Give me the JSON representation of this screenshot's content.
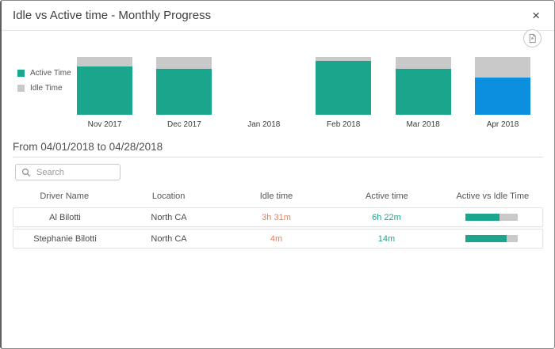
{
  "modal": {
    "title": "Idle vs Active time - Monthly Progress",
    "close_icon": "×"
  },
  "icons": {
    "close": "x-glyph",
    "export": "document-export-icon",
    "search": "magnifier"
  },
  "chart_data": {
    "type": "bar",
    "subtype": "stacked-100-percent",
    "title": "Idle vs Active time - Monthly Progress",
    "categories": [
      "Nov 2017",
      "Dec 2017",
      "Jan 2018",
      "Feb 2018",
      "Mar 2018",
      "Apr 2018"
    ],
    "series": [
      {
        "name": "Active Time",
        "color": "#1aa68c",
        "values_pct": [
          84,
          80,
          null,
          93,
          80,
          64
        ]
      },
      {
        "name": "Idle Time",
        "color": "#c9c9c9",
        "values_pct": [
          16,
          20,
          null,
          7,
          20,
          36
        ]
      }
    ],
    "highlight": {
      "category": "Apr 2018",
      "active_color": "#0d8fe0"
    },
    "legend_position": "left",
    "note": "Jan 2018 has no data bar"
  },
  "period": {
    "label": "From 04/01/2018 to 04/28/2018"
  },
  "search": {
    "placeholder": "Search"
  },
  "table": {
    "columns": [
      "Driver Name",
      "Location",
      "Idle time",
      "Active time",
      "Active vs Idle Time"
    ],
    "rows": [
      {
        "driver": "Al Bilotti",
        "location": "North CA",
        "idle_time": "3h 31m",
        "active_time": "6h 22m",
        "active_pct": 64
      },
      {
        "driver": "Stephanie Bilotti",
        "location": "North CA",
        "idle_time": "4m",
        "active_time": "14m",
        "active_pct": 78
      }
    ]
  },
  "colors": {
    "active": "#1aa68c",
    "idle": "#c9c9c9",
    "highlight": "#0d8fe0",
    "idle_text": "#e4825f",
    "active_text": "#21a58c"
  }
}
